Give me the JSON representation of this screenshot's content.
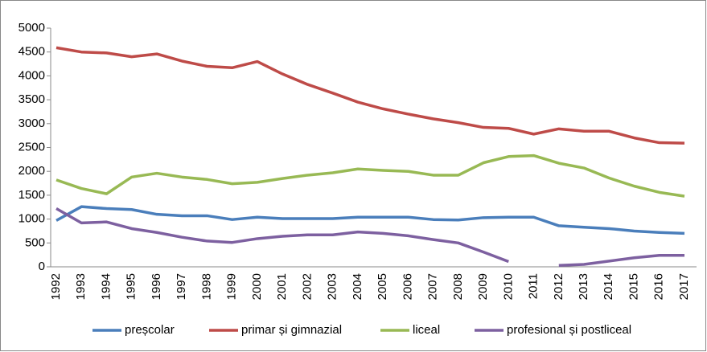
{
  "chart_data": {
    "type": "line",
    "categories": [
      "1992",
      "1993",
      "1994",
      "1995",
      "1996",
      "1997",
      "1998",
      "1999",
      "2000",
      "2001",
      "2002",
      "2003",
      "2004",
      "2005",
      "2006",
      "2007",
      "2008",
      "2009",
      "2010",
      "2011",
      "2012",
      "2013",
      "2014",
      "2015",
      "2016",
      "2017"
    ],
    "series": [
      {
        "name": "preșcolar",
        "color": "#4a7ebb",
        "values": [
          970,
          1260,
          1220,
          1200,
          1100,
          1070,
          1070,
          990,
          1040,
          1010,
          1010,
          1010,
          1040,
          1040,
          1040,
          990,
          980,
          1030,
          1040,
          1040,
          860,
          830,
          800,
          750,
          720,
          700
        ]
      },
      {
        "name": "primar și gimnazial",
        "color": "#be4b48",
        "values": [
          4590,
          4500,
          4480,
          4400,
          4460,
          4310,
          4200,
          4170,
          4300,
          4040,
          3820,
          3640,
          3450,
          3310,
          3200,
          3100,
          3020,
          2920,
          2900,
          2780,
          2890,
          2840,
          2840,
          2700,
          2600,
          2590
        ]
      },
      {
        "name": "liceal",
        "color": "#98b954",
        "values": [
          1820,
          1640,
          1530,
          1880,
          1960,
          1880,
          1830,
          1740,
          1770,
          1850,
          1920,
          1970,
          2050,
          2020,
          2000,
          1920,
          1920,
          2180,
          2310,
          2330,
          2170,
          2070,
          1860,
          1690,
          1560,
          1480
        ]
      },
      {
        "name": "profesional și postliceal",
        "color": "#7d60a0",
        "values": [
          1220,
          920,
          940,
          800,
          720,
          620,
          540,
          510,
          590,
          640,
          670,
          670,
          730,
          700,
          650,
          570,
          500,
          310,
          110,
          null,
          30,
          50,
          120,
          190,
          240,
          240
        ]
      }
    ],
    "ylim": [
      0,
      5000
    ],
    "yticks": [
      0,
      500,
      1000,
      1500,
      2000,
      2500,
      3000,
      3500,
      4000,
      4500,
      5000
    ],
    "legend": "bottom",
    "grid": false
  }
}
